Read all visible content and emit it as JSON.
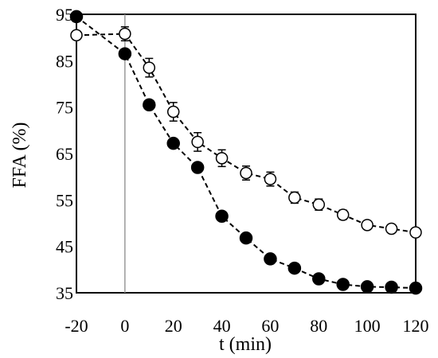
{
  "chart_data": {
    "type": "scatter",
    "xlabel": "t (min)",
    "ylabel": "FFA (%)",
    "xlim": [
      -20,
      120
    ],
    "ylim": [
      35,
      95
    ],
    "x_ticks": [
      -20,
      0,
      20,
      40,
      60,
      80,
      100,
      120
    ],
    "y_ticks": [
      35,
      45,
      55,
      65,
      75,
      85,
      95
    ],
    "grid": false,
    "legend": "none",
    "series": [
      {
        "marker": "open-circle",
        "line_style": "dashed",
        "x": [
          -20,
          0,
          10,
          20,
          30,
          40,
          50,
          60,
          70,
          80,
          90,
          100,
          110,
          120
        ],
        "y": [
          90.5,
          90.8,
          83.5,
          74,
          67.5,
          64,
          60.8,
          59.5,
          55.5,
          54,
          51.8,
          49.6,
          48.8,
          48
        ],
        "error": [
          0,
          1.5,
          2,
          2,
          2,
          1.8,
          1.5,
          1.5,
          1.2,
          1.2,
          1,
          0.8,
          0.7,
          0.6
        ]
      },
      {
        "marker": "filled-circle",
        "line_style": "dashed",
        "x": [
          -20,
          0,
          10,
          20,
          30,
          40,
          50,
          60,
          70,
          80,
          90,
          100,
          110,
          120
        ],
        "y": [
          94.5,
          86.5,
          75.5,
          67.2,
          62,
          51.5,
          46.8,
          42.3,
          40.3,
          38,
          36.8,
          36.3,
          36.2,
          36
        ],
        "error": [
          0,
          0,
          0,
          0,
          0,
          0,
          0,
          0,
          0,
          0,
          0,
          0,
          0,
          0
        ]
      }
    ]
  }
}
